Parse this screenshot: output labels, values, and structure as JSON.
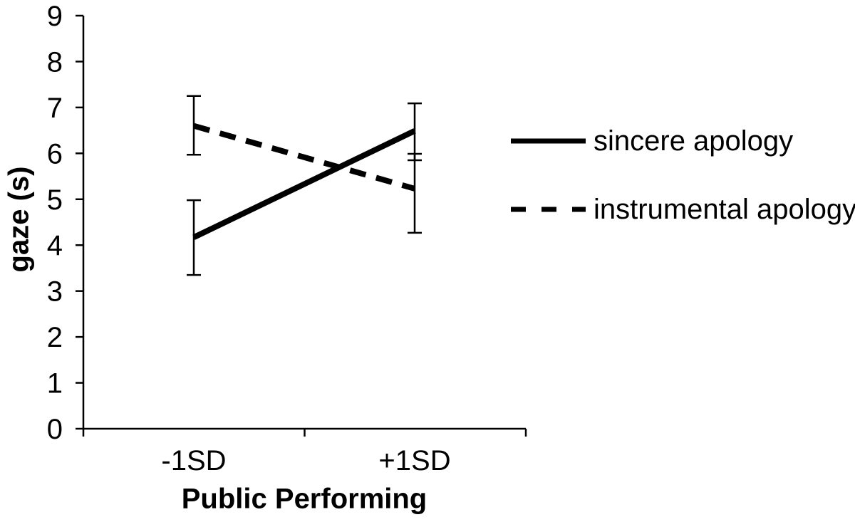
{
  "canvas": {
    "background_color": "#ffffff",
    "ink_color": "#000000"
  },
  "chart_data": {
    "type": "line",
    "title": "",
    "xlabel": "Public Performing",
    "ylabel": "gaze (s)",
    "categories": [
      "-1SD",
      "+1SD"
    ],
    "series": [
      {
        "name": "sincere apology",
        "style": "solid",
        "values": [
          4.17,
          6.49
        ],
        "error_low": [
          3.35,
          5.85
        ],
        "error_high": [
          4.98,
          7.09
        ]
      },
      {
        "name": "instrumental apology",
        "style": "dashed",
        "values": [
          6.6,
          5.23
        ],
        "error_low": [
          5.97,
          4.27
        ],
        "error_high": [
          7.25,
          5.99
        ]
      }
    ],
    "ylim": [
      0,
      9
    ],
    "yticks": [
      0,
      1,
      2,
      3,
      4,
      5,
      6,
      7,
      8,
      9
    ],
    "grid": false,
    "error_bars": true,
    "legend_position": "right"
  }
}
